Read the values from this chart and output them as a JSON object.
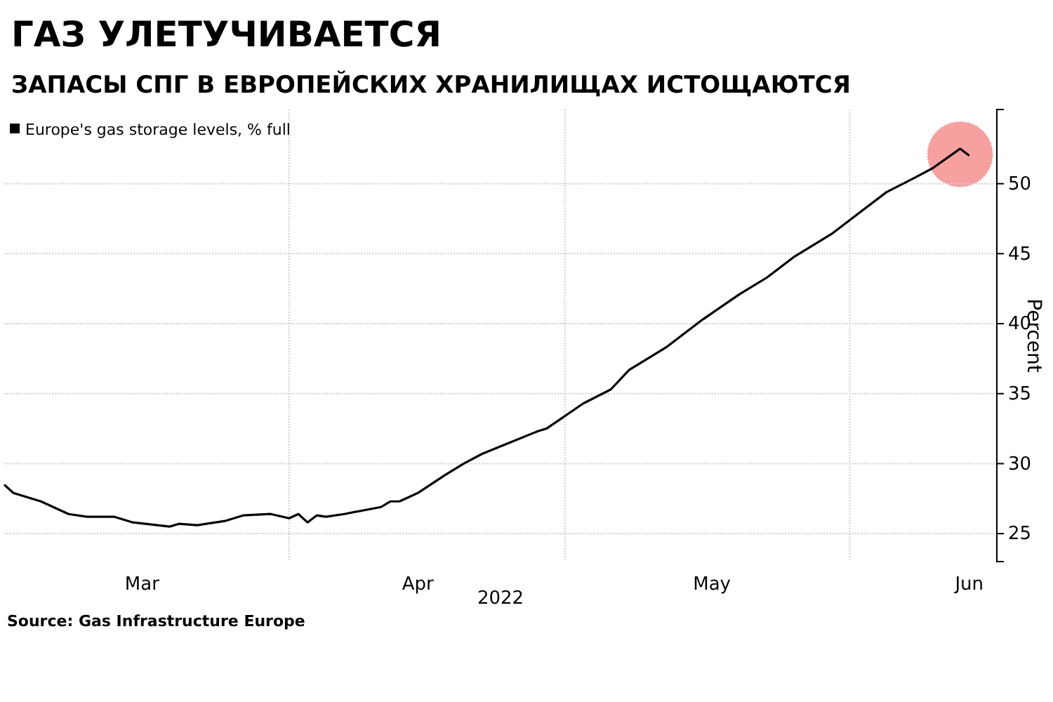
{
  "chart_data": {
    "type": "line",
    "title": "ГАЗ УЛЕТУЧИВАЕТСЯ",
    "subtitle": "ЗАПАСЫ СПГ В ЕВРОПЕЙСКИХ ХРАНИЛИЩАХ ИСТОЩАЮТСЯ",
    "xlabel": "2022",
    "ylabel": "Percent",
    "annotations": [
      "Source: Gas Infrastructure Europe"
    ],
    "x": [
      "2022-03-01",
      "2022-03-02",
      "2022-03-05",
      "2022-03-08",
      "2022-03-10",
      "2022-03-13",
      "2022-03-15",
      "2022-03-19",
      "2022-03-20",
      "2022-03-22",
      "2022-03-25",
      "2022-03-27",
      "2022-03-30",
      "2022-04-01",
      "2022-04-02",
      "2022-04-03",
      "2022-04-04",
      "2022-04-05",
      "2022-04-07",
      "2022-04-11",
      "2022-04-12",
      "2022-04-13",
      "2022-04-15",
      "2022-04-18",
      "2022-04-20",
      "2022-04-22",
      "2022-04-25",
      "2022-04-28",
      "2022-04-29",
      "2022-05-03",
      "2022-05-06",
      "2022-05-08",
      "2022-05-12",
      "2022-05-16",
      "2022-05-18",
      "2022-05-20",
      "2022-05-23",
      "2022-05-26",
      "2022-05-30",
      "2022-06-02",
      "2022-06-05",
      "2022-06-08",
      "2022-06-10",
      "2022-06-13",
      "2022-06-14"
    ],
    "series": [
      {
        "name": "Europe's gas storage levels, % full",
        "color": "#000000",
        "values": [
          28.5,
          27.9,
          27.3,
          26.4,
          26.2,
          26.2,
          25.8,
          25.5,
          25.7,
          25.6,
          25.9,
          26.3,
          26.4,
          26.1,
          26.4,
          25.8,
          26.3,
          26.2,
          26.4,
          26.9,
          27.3,
          27.3,
          27.9,
          29.2,
          30.0,
          30.7,
          31.5,
          32.3,
          32.5,
          34.3,
          35.3,
          36.7,
          38.3,
          40.3,
          41.2,
          42.1,
          43.3,
          44.8,
          46.4,
          47.9,
          49.4,
          50.4,
          51.1,
          52.5,
          52.0
        ]
      }
    ],
    "xlim": [
      "2022-03-01",
      "2022-06-17"
    ],
    "xticks": [
      {
        "value": "2022-03-16",
        "label": "Mar"
      },
      {
        "value": "2022-04-01",
        "label": null
      },
      {
        "value": "2022-04-15",
        "label": "Apr"
      },
      {
        "value": "2022-05-01",
        "label": null
      },
      {
        "value": "2022-05-17",
        "label": "May"
      },
      {
        "value": "2022-06-01",
        "label": null
      },
      {
        "value": "2022-06-14",
        "label": "Jun"
      }
    ],
    "ylim": [
      23,
      55.3
    ],
    "yticks": [
      25,
      30,
      35,
      40,
      45,
      50
    ],
    "grid": true,
    "legend": "top left",
    "marker": "none",
    "line_style": "solid"
  }
}
